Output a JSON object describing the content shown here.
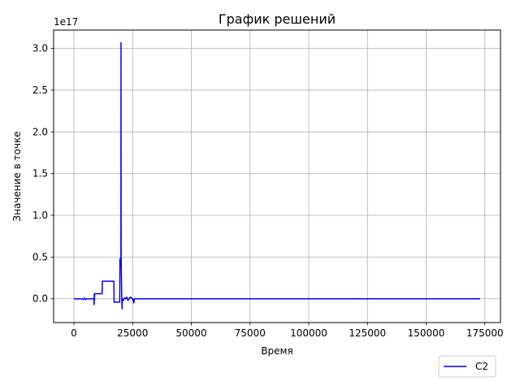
{
  "chart_data": {
    "type": "line",
    "title": "График решений",
    "xlabel": "Время",
    "ylabel": "Значение в точке",
    "y_offset_text": "1e17",
    "xlim": [
      -8650,
      181650
    ],
    "ylim": [
      -0.285,
      3.22
    ],
    "x_ticks": [
      0,
      25000,
      50000,
      75000,
      100000,
      125000,
      150000,
      175000
    ],
    "x_tick_labels": [
      "0",
      "25000",
      "50000",
      "75000",
      "100000",
      "125000",
      "150000",
      "175000"
    ],
    "y_ticks": [
      0.0,
      0.5,
      1.0,
      1.5,
      2.0,
      2.5,
      3.0
    ],
    "y_tick_labels": [
      "0.0",
      "0.5",
      "1.0",
      "1.5",
      "2.0",
      "2.5",
      "3.0"
    ],
    "grid": true,
    "legend_position": "bottom-right-outside",
    "series": [
      {
        "name": "C2",
        "color": "#0000ff",
        "x": [
          0,
          3500,
          4000,
          4500,
          5000,
          5500,
          8500,
          8600,
          8650,
          8700,
          8800,
          12000,
          12100,
          17000,
          17100,
          19500,
          19600,
          20000,
          20050,
          20100,
          20200,
          20300,
          20500,
          20600,
          21000,
          21500,
          22000,
          22500,
          23000,
          24000,
          25000,
          25500,
          25600,
          25700,
          26000,
          173000
        ],
        "y": [
          0,
          0,
          -0.01,
          0.01,
          -0.01,
          0,
          0,
          -0.07,
          0.06,
          -0.02,
          0.06,
          0.06,
          0.21,
          0.21,
          -0.04,
          -0.04,
          0.48,
          0.48,
          3.07,
          0.48,
          0.3,
          0.1,
          -0.12,
          0.0,
          -0.02,
          0.01,
          0.0,
          0.02,
          -0.02,
          0.02,
          0.0,
          -0.05,
          -0.03,
          0.0,
          0,
          0
        ]
      }
    ]
  }
}
